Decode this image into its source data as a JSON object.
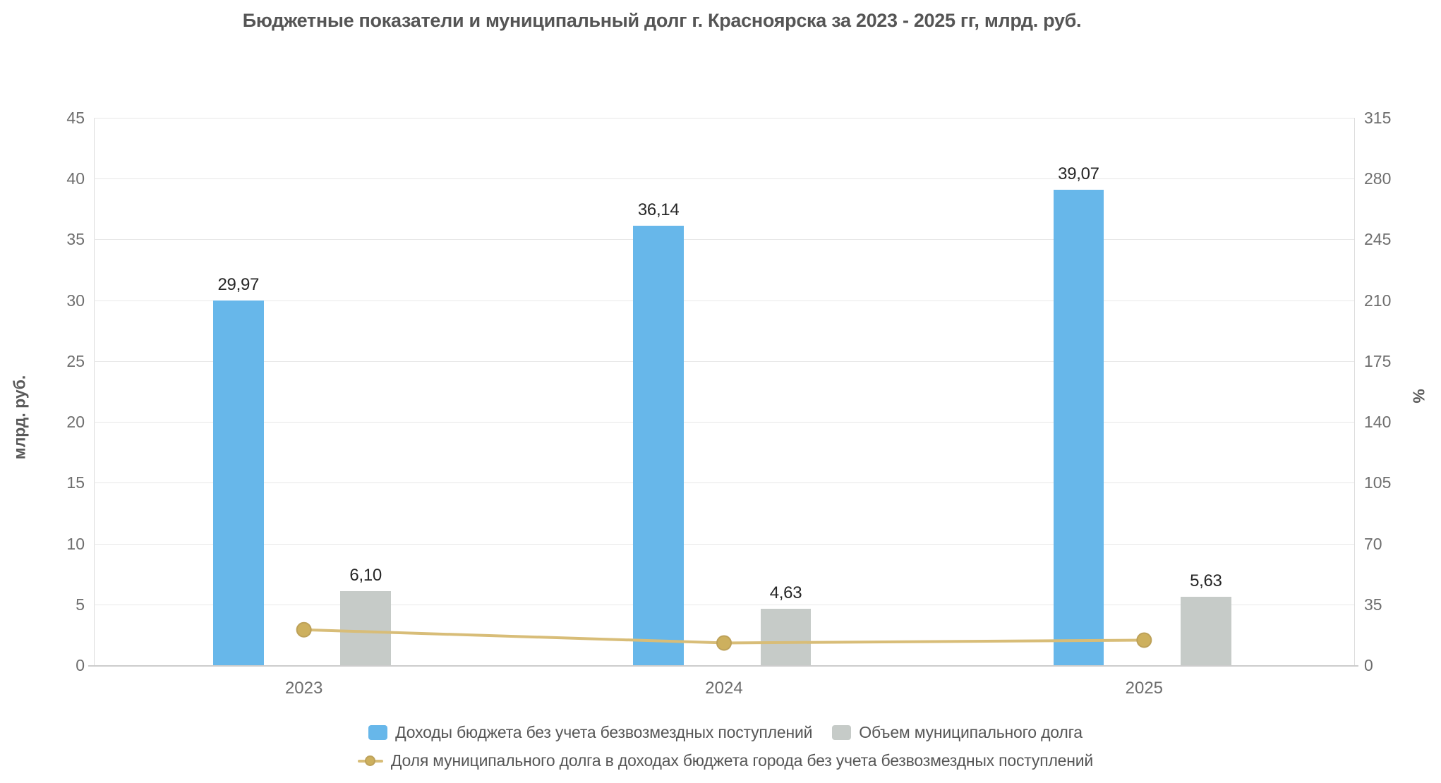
{
  "title": "Бюджетные показатели и муниципальный долг г. Красноярска за 2023 - 2025 гг, млрд. руб.",
  "chart_data": {
    "type": "bar",
    "subtype": "bar-line-combo",
    "title": "Бюджетные показатели и муниципальный долг г. Красноярска за 2023 - 2025 гг, млрд. руб.",
    "categories": [
      "2023",
      "2024",
      "2025"
    ],
    "series": [
      {
        "name": "Доходы бюджета без учета безвозмездных поступлений",
        "type": "bar",
        "axis": "left",
        "color": "#67b7ea",
        "values": [
          29.97,
          36.14,
          39.07
        ],
        "labels": [
          "29,97",
          "36,14",
          "39,07"
        ]
      },
      {
        "name": "Объем муниципального долга",
        "type": "bar",
        "axis": "left",
        "color": "#c6cbc8",
        "values": [
          6.1,
          4.63,
          5.63
        ],
        "labels": [
          "6,10",
          "4,63",
          "5,63"
        ]
      },
      {
        "name": "Доля муниципального долга в доходах бюджета города без учета безвозмездных поступлений",
        "type": "line",
        "axis": "right",
        "color": "#d8bd78",
        "marker_color": "#cdb05e",
        "marker_stroke": "#bda159",
        "values": [
          20.4,
          12.8,
          14.4
        ]
      }
    ],
    "left_axis": {
      "label": "млрд. руб.",
      "min": 0,
      "max": 45,
      "ticks": [
        0,
        5,
        10,
        15,
        20,
        25,
        30,
        35,
        40,
        45
      ]
    },
    "right_axis": {
      "label": "%",
      "min": 0,
      "max": 315,
      "ticks": [
        0,
        35,
        70,
        105,
        140,
        175,
        210,
        245,
        280,
        315
      ]
    },
    "grid": true,
    "legend_position": "bottom"
  }
}
